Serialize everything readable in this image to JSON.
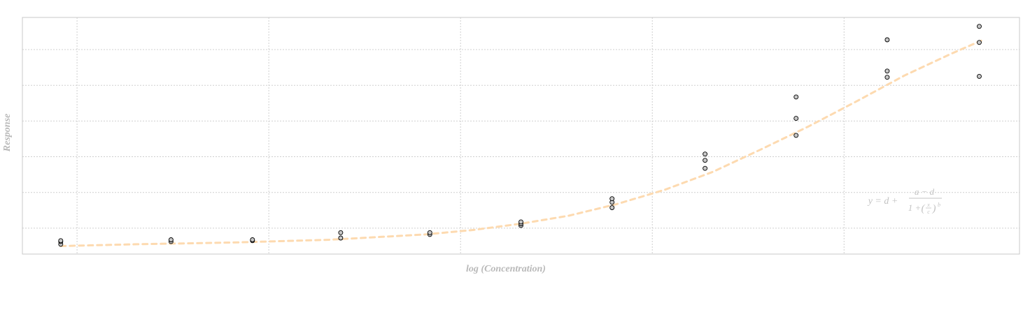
{
  "chart_data": {
    "type": "scatter",
    "title": "",
    "xlabel": "log (Concentration)",
    "ylabel": "Response",
    "x_scale": "linear",
    "xlim": [
      -10.2,
      0.2
    ],
    "ylim": [
      0.55,
      13.8
    ],
    "grid": true,
    "legend": "none",
    "tick_labels_shown": false,
    "annotation": {
      "text": "y = d + (a − d) / (1 + (x/c)^b)",
      "lhs": "y = d +",
      "numerator": "a − d",
      "denominator_lead": "1 +",
      "fraction_top": "x",
      "fraction_bottom": "c",
      "exponent": "b"
    },
    "series": [
      {
        "kind": "points",
        "x": [
          -9.8,
          -9.8,
          -9.8,
          -8.65,
          -8.65,
          -7.8,
          -7.8,
          -6.88,
          -6.88,
          -5.95,
          -5.95,
          -5.0,
          -5.0,
          -5.0,
          -4.05,
          -4.05,
          -4.05,
          -3.08,
          -3.08,
          -3.08,
          -2.13,
          -2.13,
          -2.13,
          -1.18,
          -1.18,
          -1.18,
          -0.22,
          -0.22,
          -0.22
        ],
        "y": [
          1.1,
          1.25,
          1.3,
          1.25,
          1.35,
          1.3,
          1.35,
          1.45,
          1.75,
          1.65,
          1.75,
          2.15,
          2.25,
          2.35,
          3.15,
          3.45,
          3.65,
          5.35,
          5.8,
          6.15,
          7.2,
          8.15,
          9.35,
          10.45,
          10.8,
          12.55,
          10.5,
          12.4,
          13.3
        ]
      },
      {
        "kind": "fitted-curve",
        "model": "4PL",
        "x": [
          -9.8,
          -9.0,
          -8.0,
          -7.0,
          -6.0,
          -5.5,
          -5.0,
          -4.5,
          -4.0,
          -3.5,
          -3.0,
          -2.5,
          -2.0,
          -1.5,
          -1.0,
          -0.5,
          -0.2
        ],
        "y": [
          1.0,
          1.1,
          1.2,
          1.35,
          1.65,
          1.9,
          2.25,
          2.7,
          3.35,
          4.15,
          5.15,
          6.4,
          7.7,
          9.1,
          10.55,
          11.8,
          12.5
        ]
      }
    ],
    "colors": {
      "point_fill": "#c7c7c7",
      "point_stroke": "#000000",
      "curve": "#fddab0",
      "grid": "#cfcfcf",
      "frame": "#c8c8c8",
      "axis_title": "#b9b9b9",
      "annotation": "#c3c3c3"
    }
  }
}
